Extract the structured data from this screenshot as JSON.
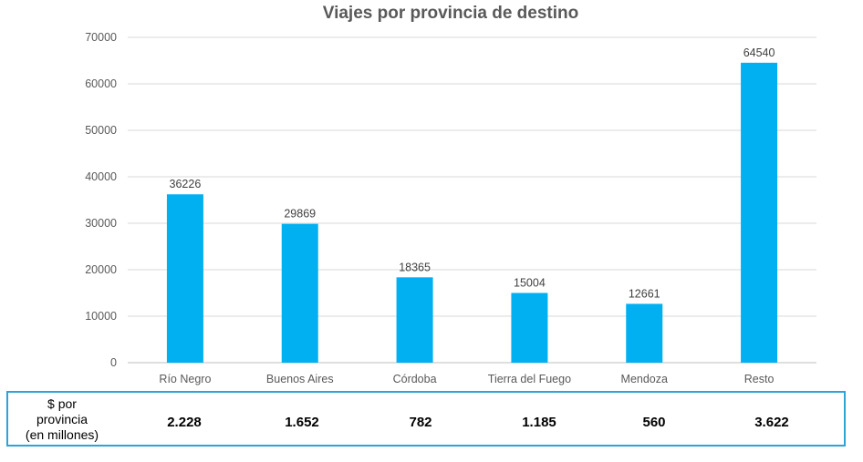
{
  "chart_data": {
    "type": "bar",
    "title": "Viajes por provincia de destino",
    "categories": [
      "Río Negro",
      "Buenos Aires",
      "Córdoba",
      "Tierra del Fuego",
      "Mendoza",
      "Resto"
    ],
    "values": [
      36226,
      29869,
      18365,
      15004,
      12661,
      64540
    ],
    "ylim": [
      0,
      70000
    ],
    "yticks": [
      0,
      10000,
      20000,
      30000,
      40000,
      50000,
      60000,
      70000
    ],
    "grid": true,
    "bar_color": "#00B0F0",
    "xlabel": "",
    "ylabel": ""
  },
  "money_table": {
    "header_lines": [
      "$ por",
      "provincia",
      "(en millones)"
    ],
    "values": [
      "2.228",
      "1.652",
      "782",
      "1.185",
      "560",
      "3.622"
    ],
    "border_color": "#2EA3D6"
  }
}
